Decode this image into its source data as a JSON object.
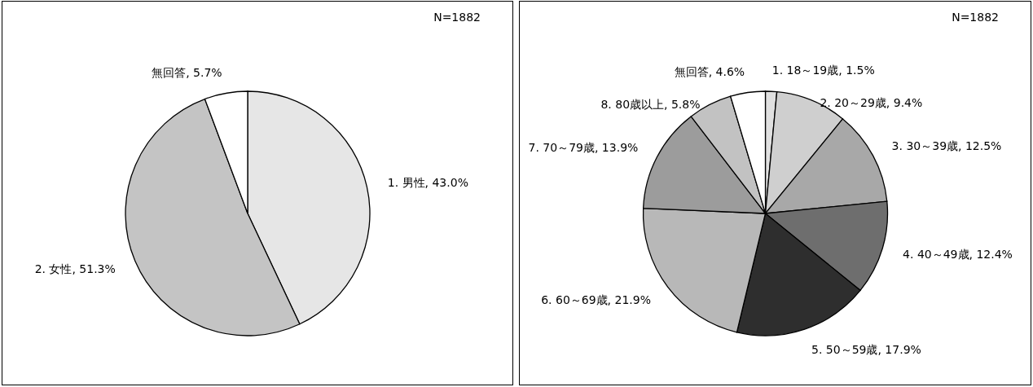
{
  "chart_data": [
    {
      "type": "pie",
      "categories": [
        "1. 男性",
        "2. 女性",
        "無回答"
      ],
      "values": [
        43.0,
        51.3,
        5.7
      ],
      "value_labels": [
        "43.0%",
        "51.3%",
        "5.7%"
      ],
      "colors": [
        "#e6e6e6",
        "#c4c4c4",
        "#ffffff"
      ],
      "annotations": [
        "N=1882"
      ]
    },
    {
      "type": "pie",
      "categories": [
        "1. 18～19歳",
        "2. 20～29歳",
        "3. 30～39歳",
        "4. 40～49歳",
        "5. 50～59歳",
        "6. 60～69歳",
        "7. 70～79歳",
        "8. 80歳以上",
        "無回答"
      ],
      "values": [
        1.5,
        9.4,
        12.5,
        12.4,
        17.9,
        21.9,
        13.9,
        5.8,
        4.6
      ],
      "value_labels": [
        "1.5%",
        "9.4%",
        "12.5%",
        "12.4%",
        "17.9%",
        "21.9%",
        "13.9%",
        "5.8%",
        "4.6%"
      ],
      "colors": [
        "#e0e0e0",
        "#cfcfcf",
        "#a8a8a8",
        "#6e6e6e",
        "#2e2e2e",
        "#b8b8b8",
        "#9c9c9c",
        "#c2c2c2",
        "#ffffff"
      ],
      "annotations": [
        "N=1882"
      ]
    }
  ]
}
